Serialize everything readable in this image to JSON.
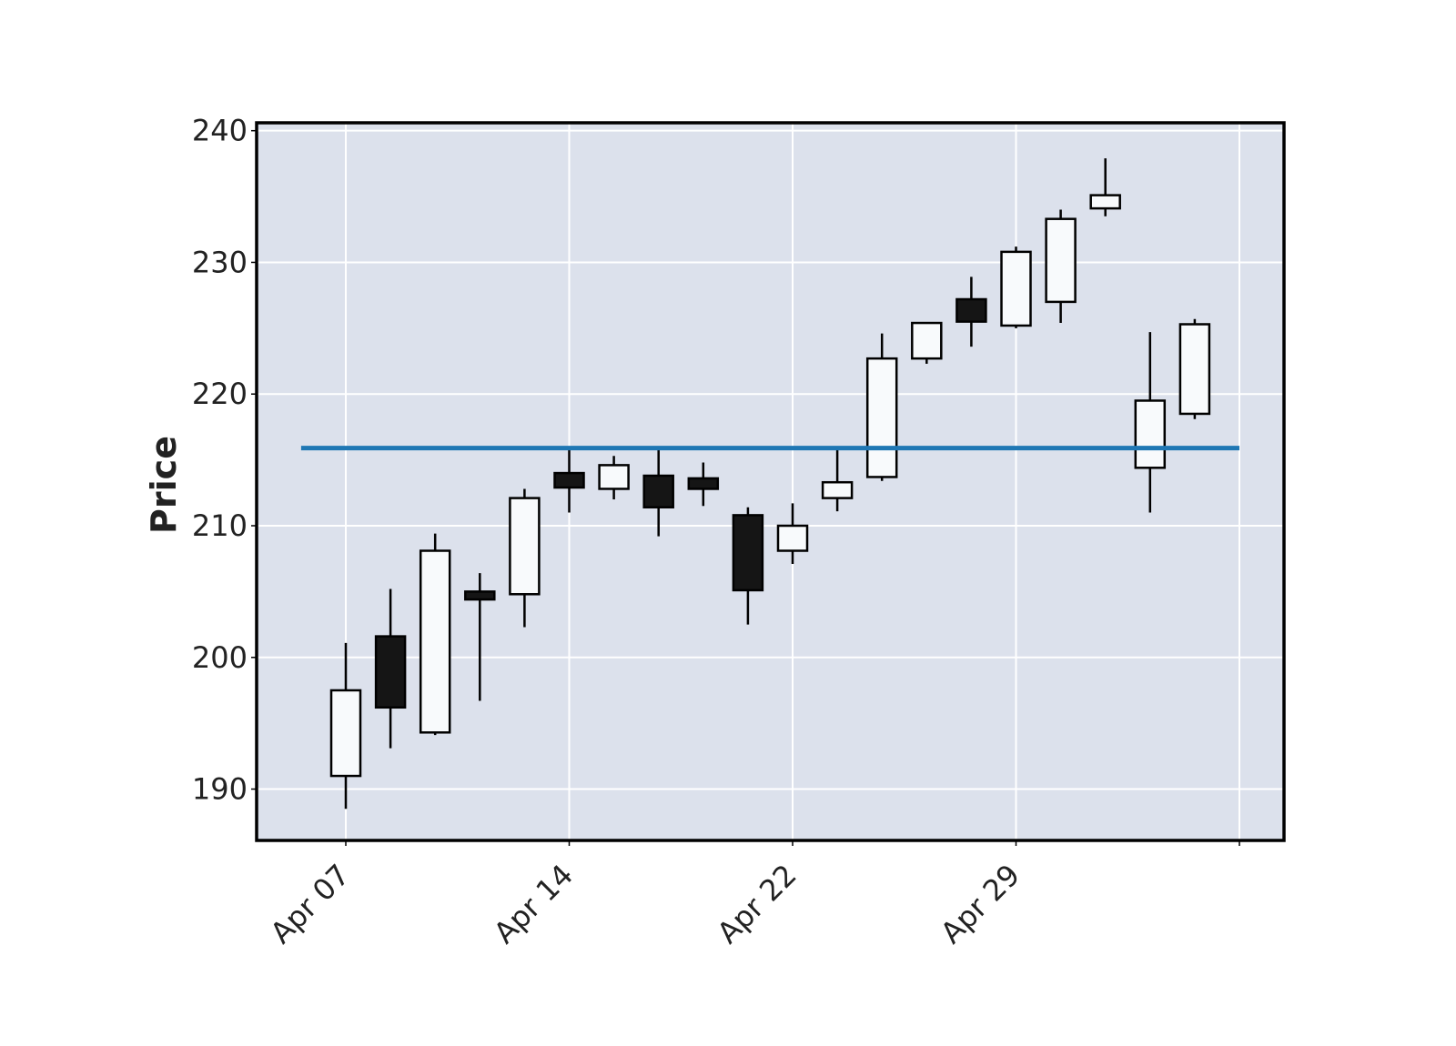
{
  "chart_data": {
    "type": "candlestick",
    "title": "",
    "xlabel": "",
    "ylabel": "Price",
    "ylim": [
      186.1,
      240.6
    ],
    "yticks": [
      190,
      200,
      210,
      220,
      230,
      240
    ],
    "x_tick_labels": [
      {
        "label": "Apr 07",
        "date": "2025-04-07"
      },
      {
        "label": "Apr 14",
        "date": "2025-04-14"
      },
      {
        "label": "Apr 22",
        "date": "2025-04-22"
      },
      {
        "label": "Apr 29",
        "date": "2025-04-29"
      },
      {
        "label": "",
        "date": "2025-05-06"
      }
    ],
    "grid": true,
    "background_color": "#dce1ec",
    "up_color": "#f8fafc",
    "down_color": "#151515",
    "edge_color": "#000000",
    "hline": {
      "value": 215.9,
      "color": "#1f77b4"
    },
    "candles": [
      {
        "date": "2025-04-07",
        "open": 191.0,
        "high": 201.1,
        "low": 188.5,
        "close": 197.5
      },
      {
        "date": "2025-04-08",
        "open": 201.6,
        "high": 205.2,
        "low": 193.1,
        "close": 196.2
      },
      {
        "date": "2025-04-09",
        "open": 194.3,
        "high": 209.4,
        "low": 194.1,
        "close": 208.1
      },
      {
        "date": "2025-04-10",
        "open": 205.0,
        "high": 206.4,
        "low": 196.7,
        "close": 204.4
      },
      {
        "date": "2025-04-11",
        "open": 204.8,
        "high": 212.8,
        "low": 202.3,
        "close": 212.1
      },
      {
        "date": "2025-04-14",
        "open": 214.0,
        "high": 215.8,
        "low": 211.0,
        "close": 212.9
      },
      {
        "date": "2025-04-15",
        "open": 212.8,
        "high": 215.3,
        "low": 212.0,
        "close": 214.6
      },
      {
        "date": "2025-04-16",
        "open": 213.8,
        "high": 215.9,
        "low": 209.2,
        "close": 211.4
      },
      {
        "date": "2025-04-17",
        "open": 213.6,
        "high": 214.8,
        "low": 211.5,
        "close": 212.8
      },
      {
        "date": "2025-04-21",
        "open": 210.8,
        "high": 211.4,
        "low": 202.5,
        "close": 205.1
      },
      {
        "date": "2025-04-22",
        "open": 208.1,
        "high": 211.7,
        "low": 207.1,
        "close": 210.0
      },
      {
        "date": "2025-04-23",
        "open": 212.1,
        "high": 215.9,
        "low": 211.1,
        "close": 213.3
      },
      {
        "date": "2025-04-24",
        "open": 213.7,
        "high": 224.6,
        "low": 213.4,
        "close": 222.7
      },
      {
        "date": "2025-04-25",
        "open": 222.7,
        "high": 225.4,
        "low": 222.3,
        "close": 225.4
      },
      {
        "date": "2025-04-28",
        "open": 227.2,
        "high": 228.9,
        "low": 223.6,
        "close": 225.5
      },
      {
        "date": "2025-04-29",
        "open": 225.2,
        "high": 231.2,
        "low": 225.0,
        "close": 230.8
      },
      {
        "date": "2025-04-30",
        "open": 227.0,
        "high": 234.0,
        "low": 225.4,
        "close": 233.3
      },
      {
        "date": "2025-05-01",
        "open": 234.1,
        "high": 237.9,
        "low": 233.5,
        "close": 235.1
      },
      {
        "date": "2025-05-02",
        "open": 214.4,
        "high": 224.7,
        "low": 211.0,
        "close": 219.5
      },
      {
        "date": "2025-05-05",
        "open": 218.5,
        "high": 225.7,
        "low": 218.1,
        "close": 225.3
      }
    ]
  }
}
